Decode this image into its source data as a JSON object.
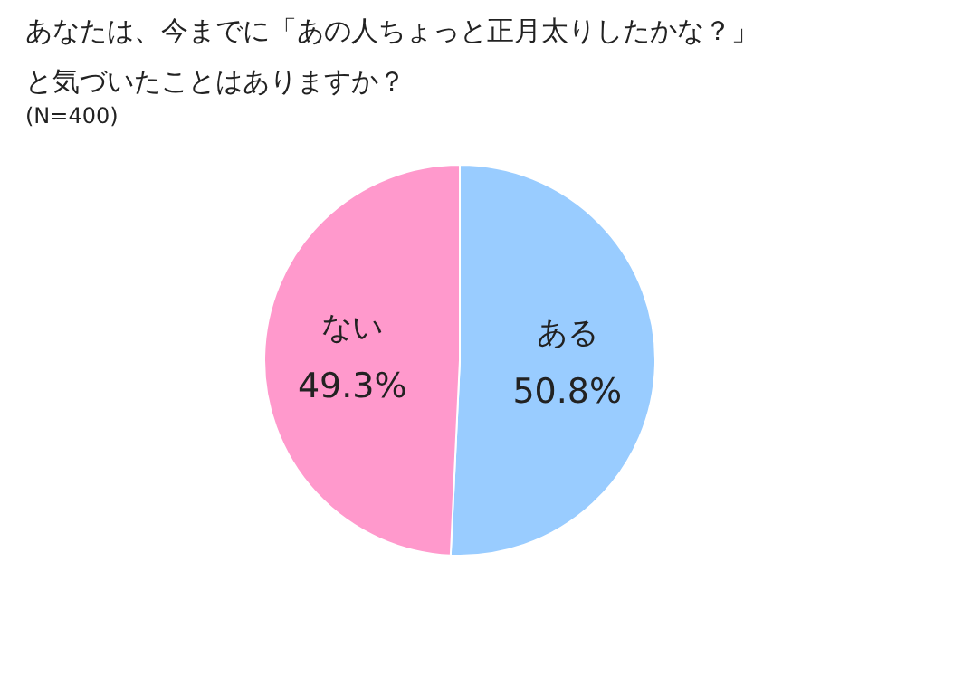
{
  "chart_data": {
    "type": "pie",
    "title": "あなたは、今までに「あの人ちょっと正月太りしたかな？」と気づいたことはありますか？",
    "subtitle": "(N=400)",
    "categories": [
      "ある",
      "ない"
    ],
    "values": [
      50.8,
      49.3
    ],
    "colors": [
      "#99ccff",
      "#ff99cc"
    ],
    "value_labels": [
      "50.8%",
      "49.3%"
    ]
  }
}
